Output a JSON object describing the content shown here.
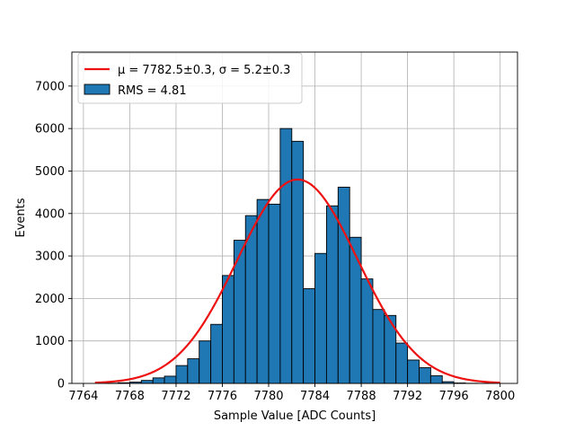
{
  "chart_data": {
    "type": "bar",
    "title": "",
    "xlabel": "Sample Value [ADC Counts]",
    "ylabel": "Events",
    "xlim": [
      7763,
      7801.5
    ],
    "ylim": [
      0,
      7800
    ],
    "xticks": [
      7764,
      7768,
      7772,
      7776,
      7780,
      7784,
      7788,
      7792,
      7796,
      7800
    ],
    "yticks": [
      0,
      1000,
      2000,
      3000,
      4000,
      5000,
      6000,
      7000
    ],
    "grid": true,
    "legend_placement": "top-left",
    "histogram": {
      "name": "RMS = 4.81",
      "color": "#1f77b4",
      "edgecolor": "#000000",
      "bin_starts": [
        7766,
        7767,
        7768,
        7769,
        7770,
        7771,
        7772,
        7773,
        7774,
        7775,
        7776,
        7777,
        7778,
        7779,
        7780,
        7781,
        7782,
        7783,
        7784,
        7785,
        7786,
        7787,
        7788,
        7789,
        7790,
        7791,
        7792,
        7793,
        7794,
        7795,
        7796,
        7797,
        7798
      ],
      "bin_width": 1,
      "values": [
        5,
        15,
        30,
        70,
        130,
        170,
        420,
        580,
        1000,
        1390,
        2540,
        3370,
        3950,
        4330,
        4220,
        6000,
        5700,
        2230,
        3060,
        4180,
        4620,
        3440,
        2460,
        1740,
        1600,
        950,
        550,
        370,
        180,
        40,
        10,
        3,
        1
      ]
    },
    "fit": {
      "name": "μ = 7782.5±0.3, σ = 5.2±0.3",
      "mu_label": "μ = 7782.5±0.3,",
      "sigma_label": "σ = 5.2±0.3",
      "color": "#ee1111",
      "mu": 7782.5,
      "sigma": 5.2,
      "amplitude": 4800,
      "x_range": [
        7765,
        7800
      ]
    }
  }
}
